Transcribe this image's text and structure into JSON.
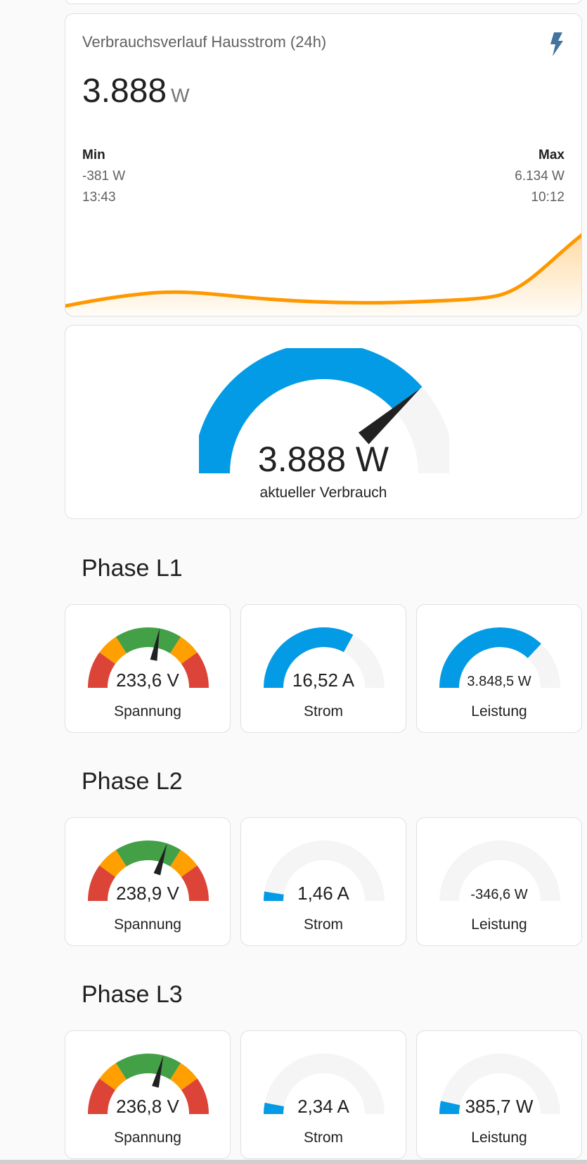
{
  "history": {
    "title": "Verbrauchsverlauf Hausstrom (24h)",
    "value": "3.888",
    "unit": "W",
    "icon": "flash-icon",
    "min": {
      "label": "Min",
      "value": "-381 W",
      "time": "13:43"
    },
    "max": {
      "label": "Max",
      "value": "6.134 W",
      "time": "10:12"
    },
    "color": "#ff9800"
  },
  "gauge": {
    "value": "3.888 W",
    "label": "aktueller Verbrauch",
    "fraction": 0.77,
    "color": "#039be5"
  },
  "phases": [
    {
      "title": "Phase L1",
      "voltage": {
        "value": "233,6 V",
        "label": "Spannung",
        "fraction": 0.56
      },
      "current": {
        "value": "16,52 A",
        "label": "Strom",
        "fraction": 0.66
      },
      "power": {
        "value": "3.848,5 W",
        "label": "Leistung",
        "fraction": 0.74
      }
    },
    {
      "title": "Phase L2",
      "voltage": {
        "value": "238,9 V",
        "label": "Spannung",
        "fraction": 0.6
      },
      "current": {
        "value": "1,46 A",
        "label": "Strom",
        "fraction": 0.05
      },
      "power": {
        "value": "-346,6 W",
        "label": "Leistung",
        "fraction": 0.0
      }
    },
    {
      "title": "Phase L3",
      "voltage": {
        "value": "236,8 V",
        "label": "Spannung",
        "fraction": 0.58
      },
      "current": {
        "value": "2,34 A",
        "label": "Strom",
        "fraction": 0.06
      },
      "power": {
        "value": "385,7 W",
        "label": "Leistung",
        "fraction": 0.07
      }
    }
  ],
  "colors": {
    "accent": "#039be5",
    "track": "#f5f5f5",
    "green": "#43a047",
    "orange": "#ffa000",
    "red": "#db4437"
  }
}
